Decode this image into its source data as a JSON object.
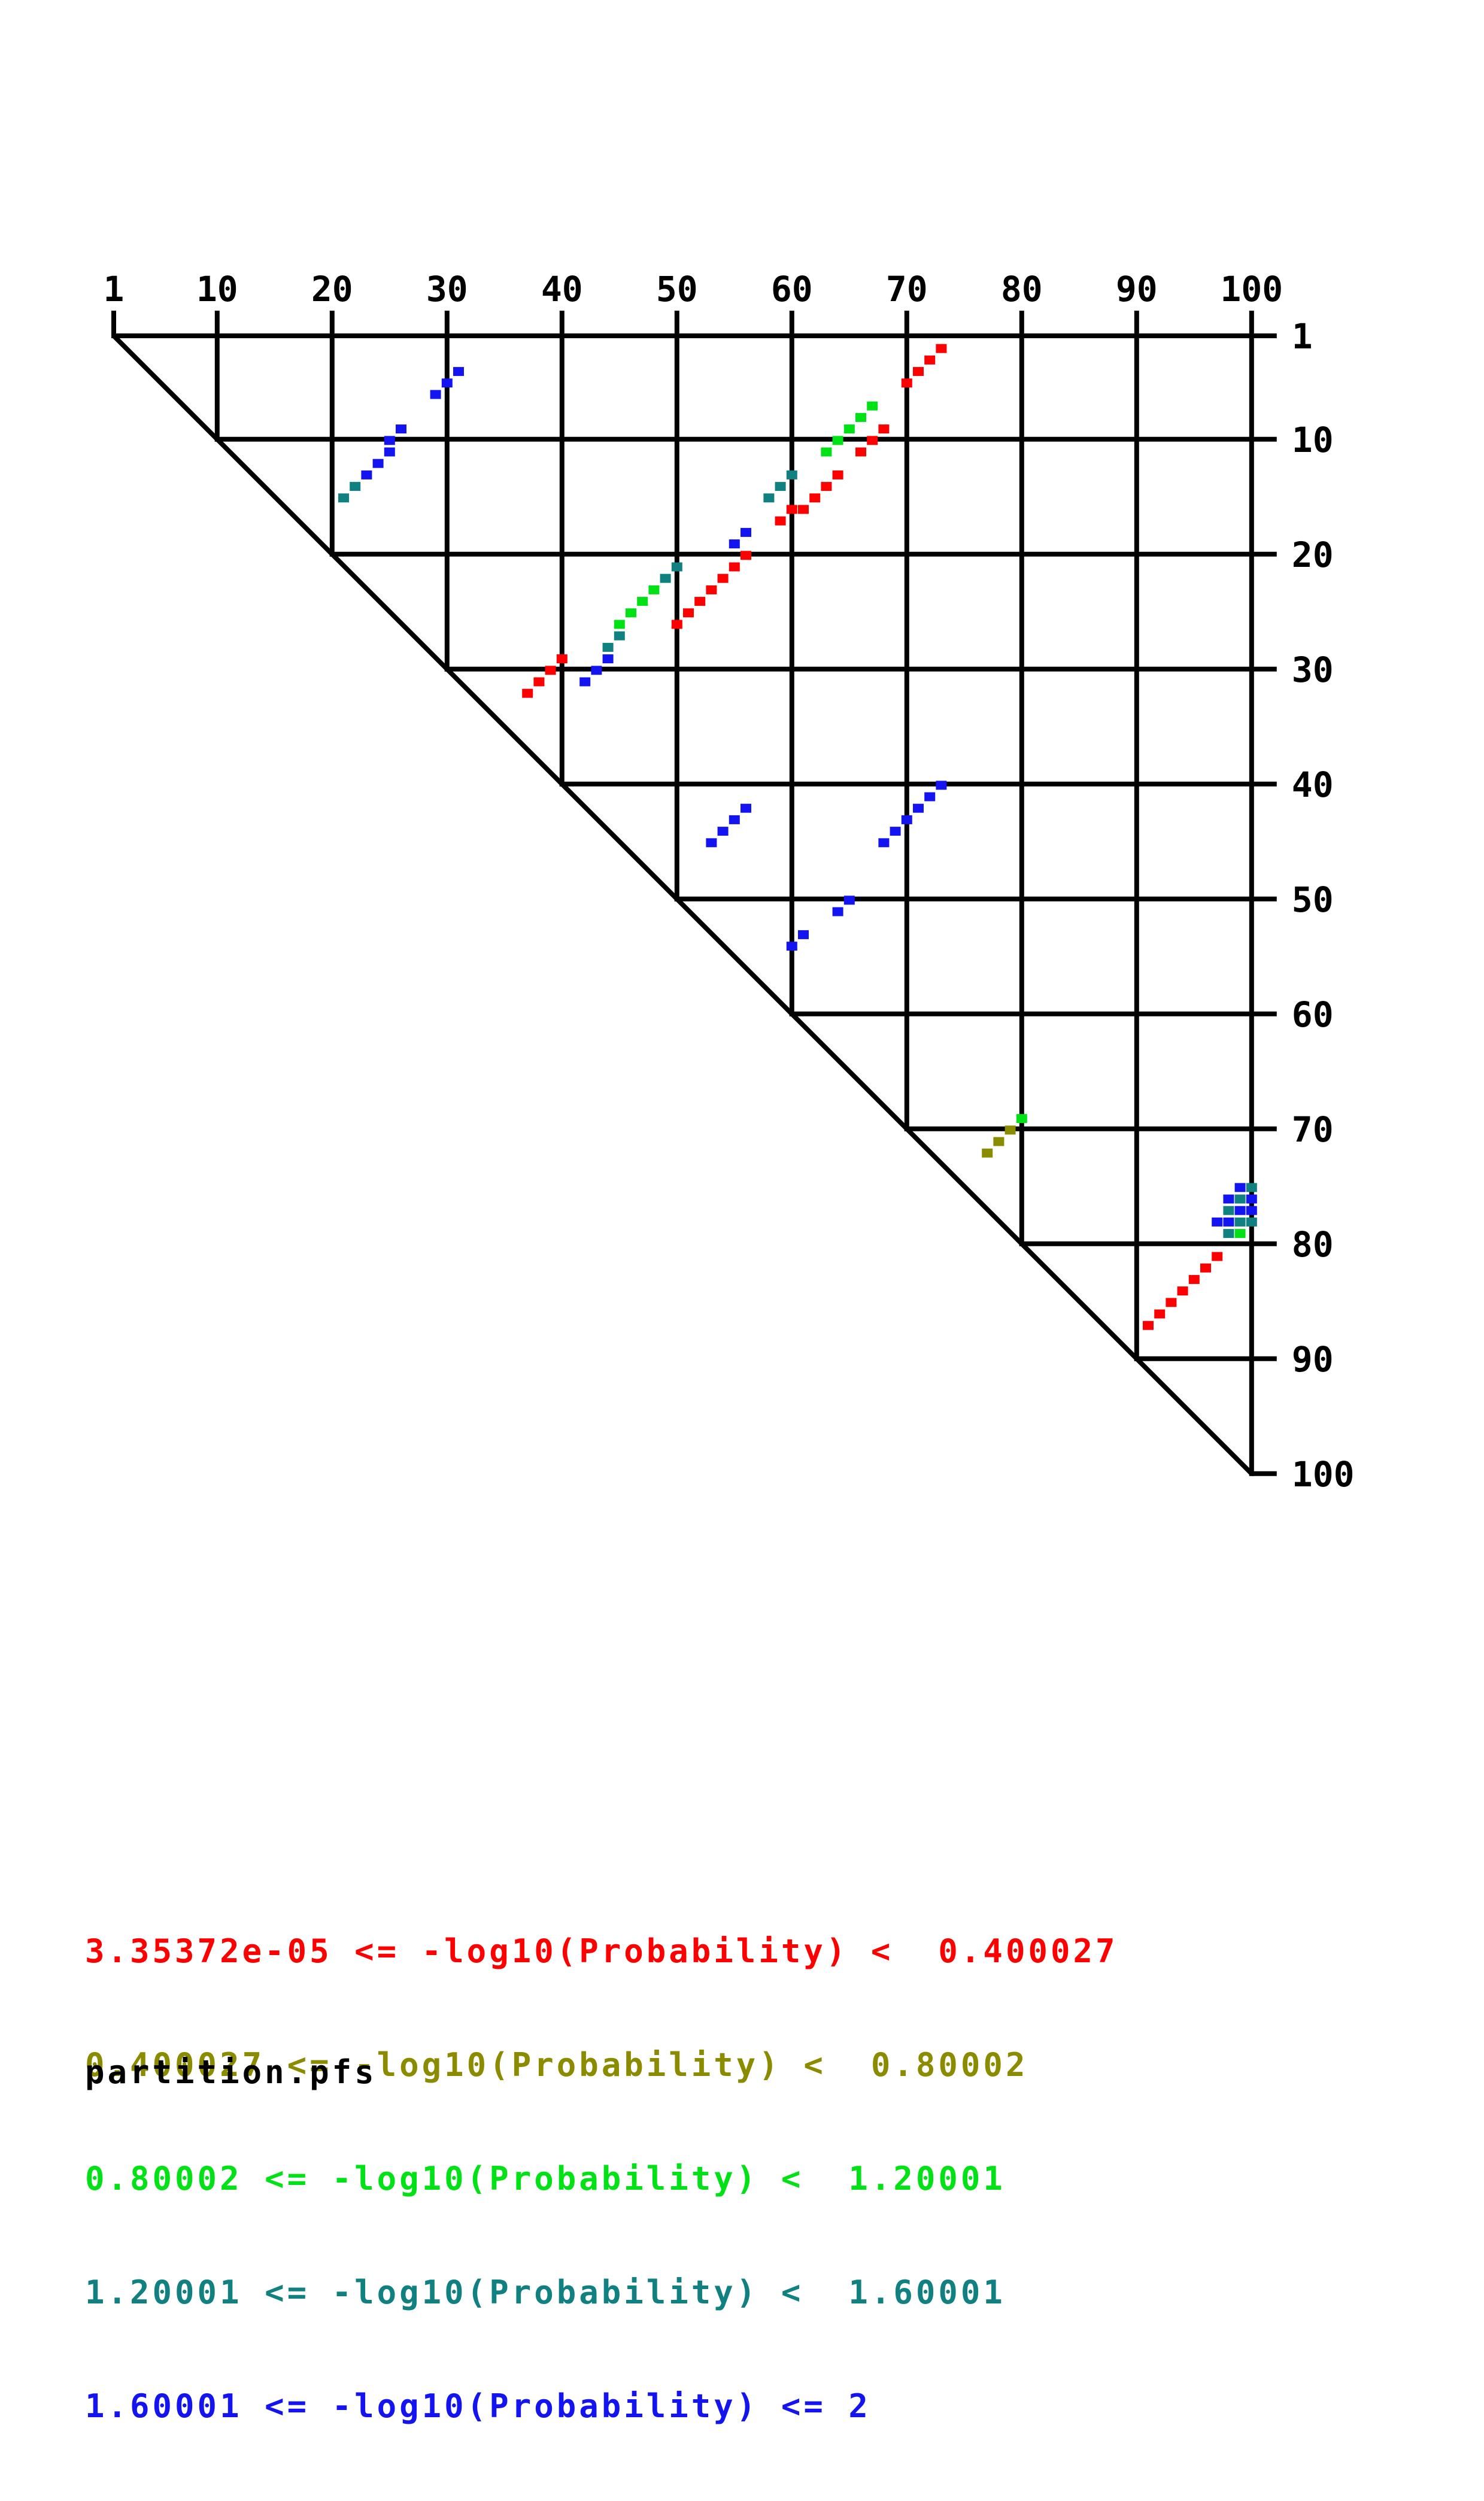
{
  "chart_data": {
    "type": "scatter",
    "subtype": "upper-triangular probability dot plot",
    "title": "",
    "grid": true,
    "x_axis": {
      "position": "top",
      "range": [
        1,
        100
      ],
      "ticks": [
        1,
        10,
        20,
        30,
        40,
        50,
        60,
        70,
        80,
        90,
        100
      ]
    },
    "y_axis": {
      "position": "right",
      "range": [
        1,
        100
      ],
      "ticks": [
        1,
        10,
        20,
        30,
        40,
        50,
        60,
        70,
        80,
        90,
        100
      ]
    },
    "filename": "partition.pfs",
    "series": [
      {
        "label": "3.35372e-05 <= -log10(Probability) <  0.400027",
        "color": "#fe0000",
        "points": [
          [
            73,
            2
          ],
          [
            72,
            3
          ],
          [
            71,
            4
          ],
          [
            70,
            5
          ],
          [
            68,
            9
          ],
          [
            67,
            10
          ],
          [
            66,
            11
          ],
          [
            64,
            13
          ],
          [
            63,
            14
          ],
          [
            62,
            15
          ],
          [
            61,
            16
          ],
          [
            60,
            16
          ],
          [
            59,
            17
          ],
          [
            56,
            20
          ],
          [
            55,
            21
          ],
          [
            54,
            22
          ],
          [
            53,
            23
          ],
          [
            52,
            24
          ],
          [
            51,
            25
          ],
          [
            50,
            26
          ],
          [
            40,
            29
          ],
          [
            39,
            30
          ],
          [
            38,
            31
          ],
          [
            37,
            32
          ],
          [
            97,
            81
          ],
          [
            96,
            82
          ],
          [
            95,
            83
          ],
          [
            94,
            84
          ],
          [
            93,
            85
          ],
          [
            92,
            86
          ],
          [
            91,
            87
          ]
        ]
      },
      {
        "label": "0.400027 <= -log10(Probability) <  0.80002",
        "color": "#8b8b00",
        "points": [
          [
            79,
            70
          ],
          [
            78,
            71
          ],
          [
            77,
            72
          ]
        ]
      },
      {
        "label": "0.80002 <= -log10(Probability) <  1.20001",
        "color": "#00e216",
        "points": [
          [
            67,
            7
          ],
          [
            66,
            8
          ],
          [
            65,
            9
          ],
          [
            64,
            10
          ],
          [
            63,
            11
          ],
          [
            48,
            23
          ],
          [
            47,
            24
          ],
          [
            46,
            25
          ],
          [
            45,
            26
          ],
          [
            80,
            69
          ],
          [
            99,
            79
          ]
        ]
      },
      {
        "label": "1.20001 <= -log10(Probability) <  1.60001",
        "color": "#108080",
        "points": [
          [
            21,
            15
          ],
          [
            22,
            14
          ],
          [
            60,
            13
          ],
          [
            59,
            14
          ],
          [
            58,
            15
          ],
          [
            50,
            21
          ],
          [
            49,
            22
          ],
          [
            45,
            27
          ],
          [
            44,
            28
          ],
          [
            100,
            75
          ],
          [
            99,
            76
          ],
          [
            98,
            77
          ],
          [
            99,
            78
          ],
          [
            100,
            78
          ],
          [
            98,
            79
          ]
        ]
      },
      {
        "label": "1.60001 <= -log10(Probability) <= 2",
        "color": "#1414f0",
        "points": [
          [
            31,
            4
          ],
          [
            30,
            5
          ],
          [
            29,
            6
          ],
          [
            26,
            9
          ],
          [
            25,
            10
          ],
          [
            25,
            11
          ],
          [
            24,
            12
          ],
          [
            23,
            13
          ],
          [
            56,
            18
          ],
          [
            55,
            19
          ],
          [
            44,
            29
          ],
          [
            43,
            30
          ],
          [
            42,
            31
          ],
          [
            73,
            40
          ],
          [
            72,
            41
          ],
          [
            71,
            42
          ],
          [
            70,
            43
          ],
          [
            69,
            44
          ],
          [
            68,
            45
          ],
          [
            56,
            42
          ],
          [
            55,
            43
          ],
          [
            54,
            44
          ],
          [
            53,
            45
          ],
          [
            65,
            50
          ],
          [
            64,
            51
          ],
          [
            61,
            53
          ],
          [
            60,
            54
          ],
          [
            99,
            75
          ],
          [
            98,
            76
          ],
          [
            100,
            76
          ],
          [
            99,
            77
          ],
          [
            100,
            77
          ],
          [
            97,
            78
          ],
          [
            98,
            78
          ]
        ]
      }
    ]
  }
}
